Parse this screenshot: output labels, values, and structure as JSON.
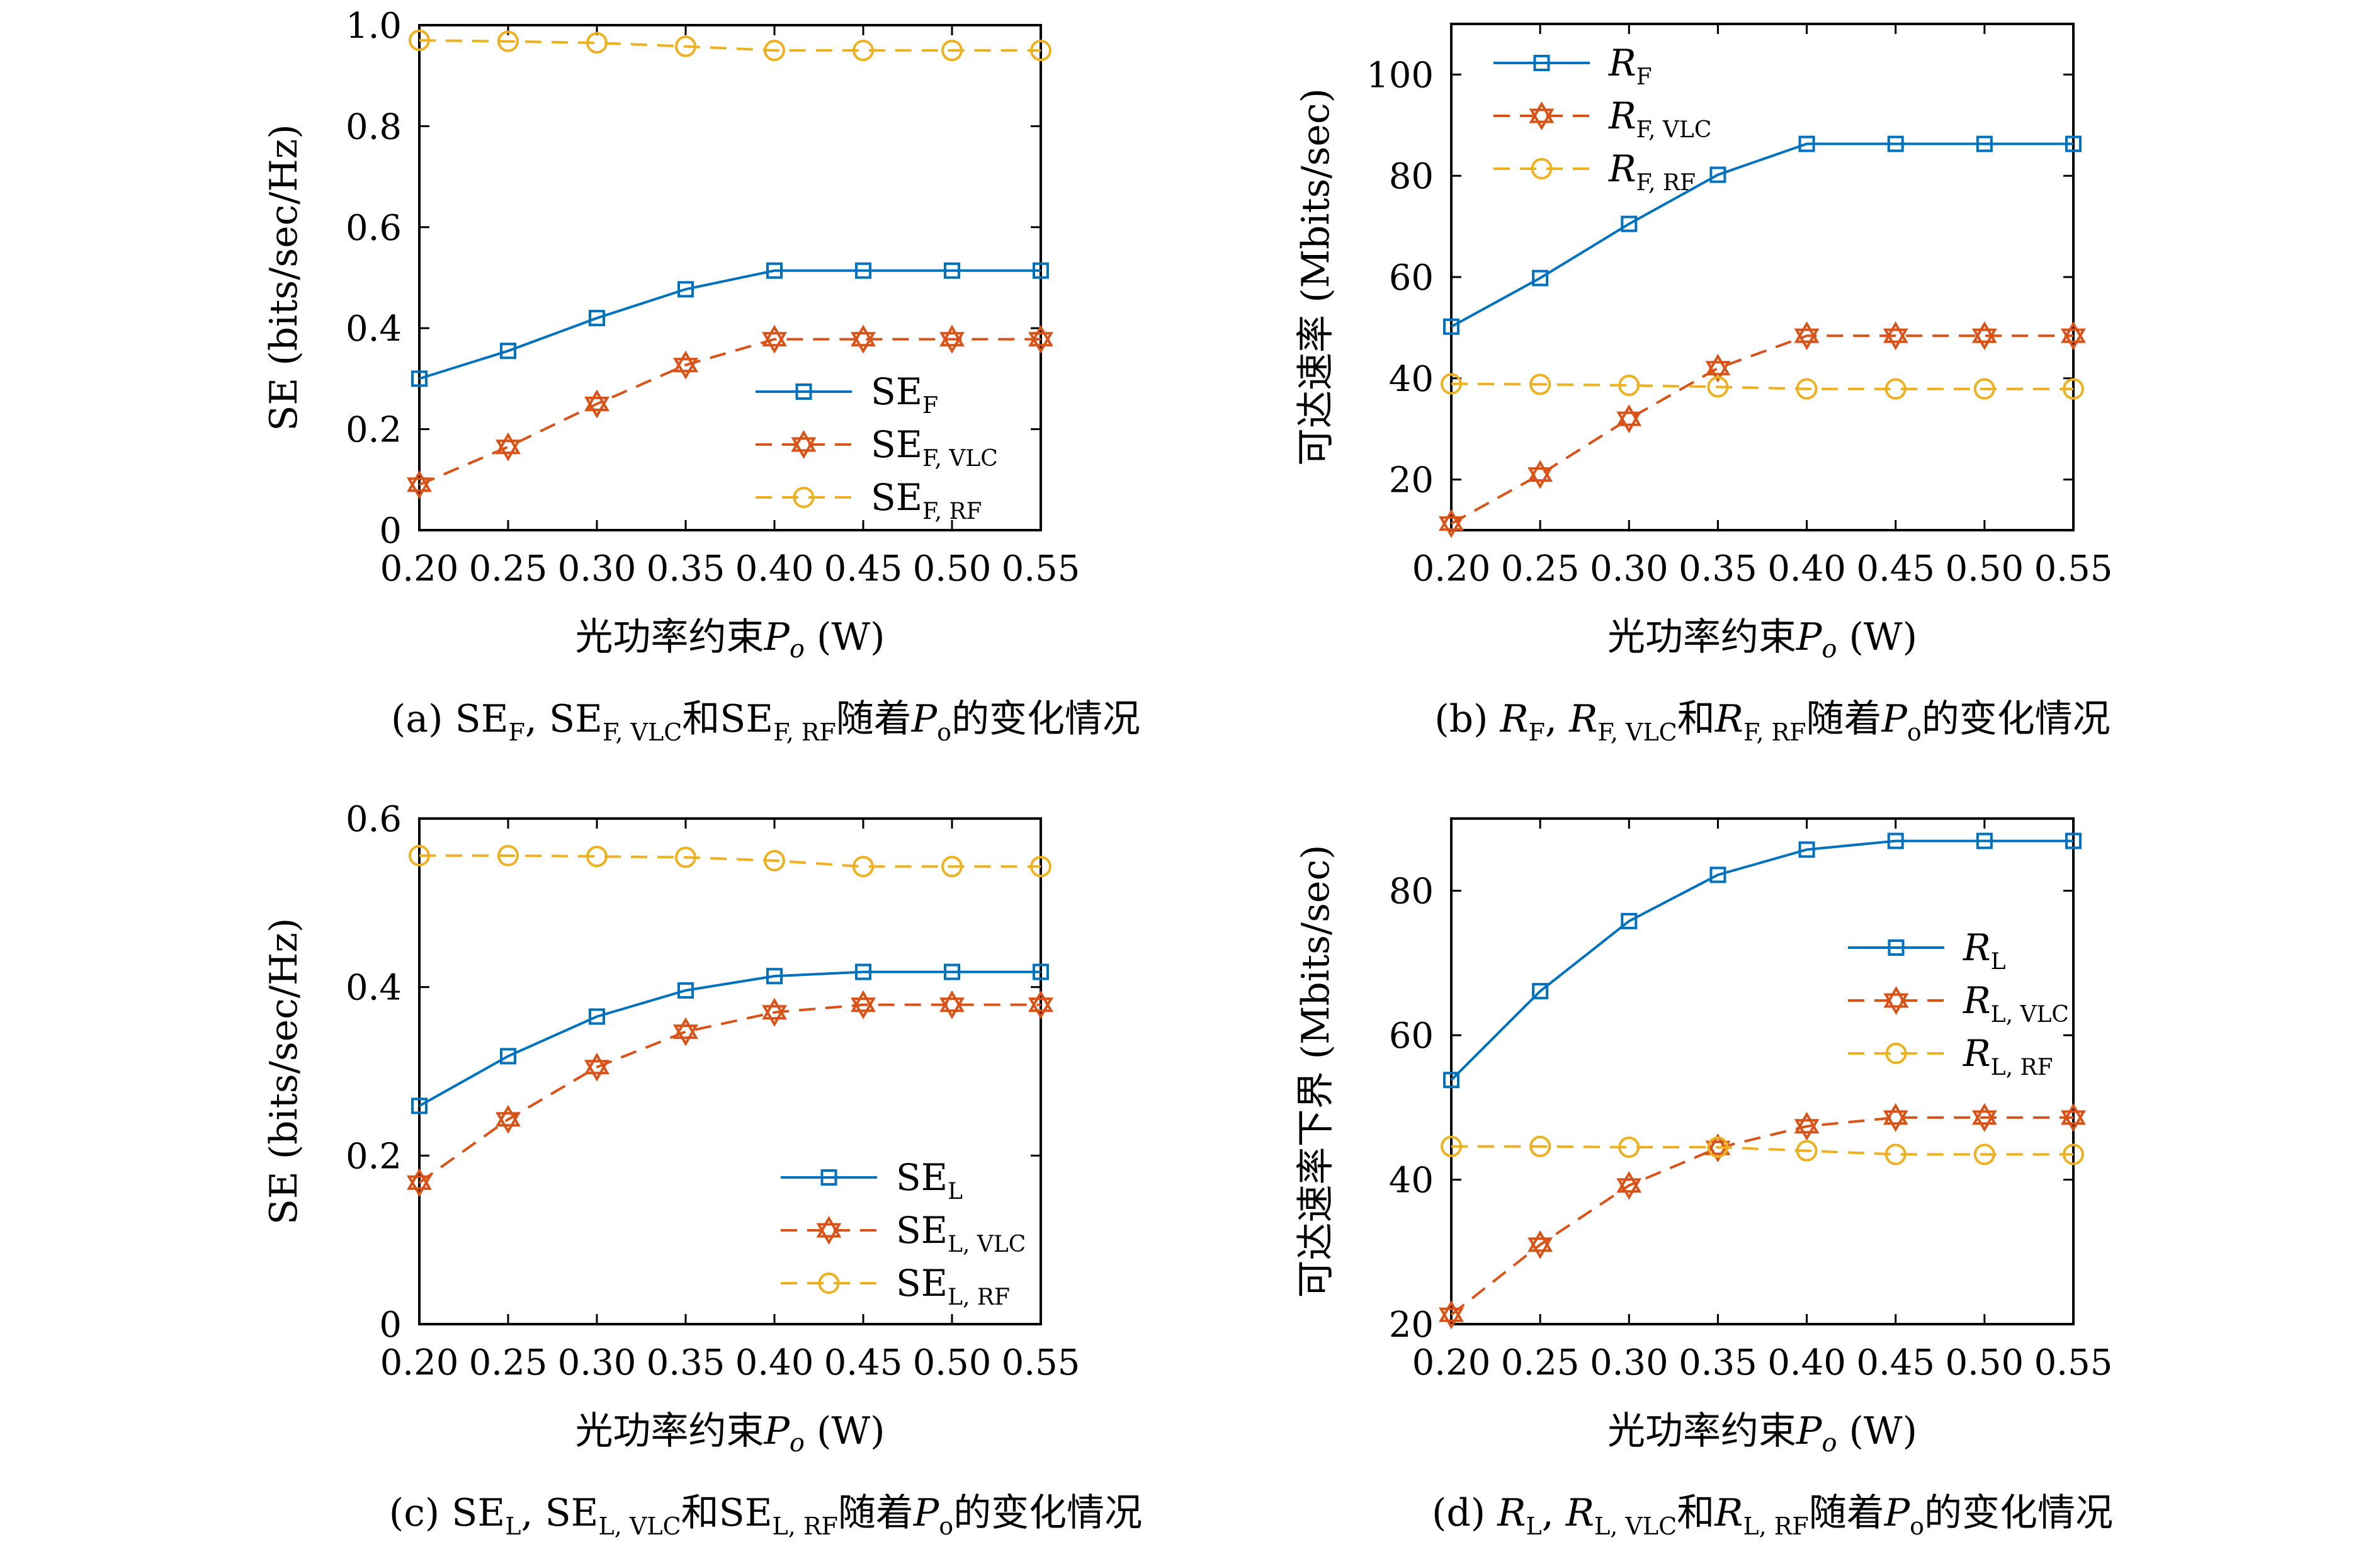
{
  "chart_data": [
    {
      "id": "a",
      "type": "line",
      "x": [
        0.2,
        0.25,
        0.3,
        0.35,
        0.4,
        0.45,
        0.5,
        0.55
      ],
      "xticks": [
        "0.20",
        "0.25",
        "0.30",
        "0.35",
        "0.40",
        "0.45",
        "0.50",
        "0.55"
      ],
      "xlabel_main": "光功率约束",
      "xlabel_var": "P",
      "xlabel_sub": "o",
      "xlabel_unit": " (W)",
      "ylabel": "SE (bits/sec/Hz)",
      "ylim": [
        0,
        1.0
      ],
      "yticks": [
        0,
        0.2,
        0.4,
        0.6,
        0.8,
        1.0
      ],
      "ytick_labels": [
        "0",
        "0.2",
        "0.4",
        "0.6",
        "0.8",
        "1.0"
      ],
      "legend_position": "lower-right",
      "series": [
        {
          "name": "SE",
          "name_sub": "F",
          "italic": false,
          "color": "#0072BD",
          "marker": "square",
          "dashed": false,
          "values": [
            0.3,
            0.355,
            0.42,
            0.477,
            0.514,
            0.514,
            0.514,
            0.514
          ]
        },
        {
          "name": "SE",
          "name_sub": "F, VLC",
          "italic": false,
          "color": "#D95319",
          "marker": "hexagram",
          "dashed": true,
          "values": [
            0.09,
            0.165,
            0.25,
            0.327,
            0.378,
            0.378,
            0.378,
            0.378
          ]
        },
        {
          "name": "SE",
          "name_sub": "F, RF",
          "italic": false,
          "color": "#EDB120",
          "marker": "circle",
          "dashed": true,
          "values": [
            0.97,
            0.968,
            0.965,
            0.958,
            0.95,
            0.95,
            0.95,
            0.95
          ]
        }
      ],
      "caption": {
        "prefix": "(a) ",
        "parts": [
          {
            "t": "SE"
          },
          {
            "sub": "F"
          },
          {
            "t": ", SE"
          },
          {
            "sub": "F, VLC"
          },
          {
            "t": "和SE"
          },
          {
            "sub": "F, RF"
          },
          {
            "t": "随着"
          },
          {
            "it": "P"
          },
          {
            "sub": "o"
          },
          {
            "t": "的变化情况"
          }
        ]
      }
    },
    {
      "id": "b",
      "type": "line",
      "x": [
        0.2,
        0.25,
        0.3,
        0.35,
        0.4,
        0.45,
        0.5,
        0.55
      ],
      "xticks": [
        "0.20",
        "0.25",
        "0.30",
        "0.35",
        "0.40",
        "0.45",
        "0.50",
        "0.55"
      ],
      "xlabel_main": "光功率约束",
      "xlabel_var": "P",
      "xlabel_sub": "o",
      "xlabel_unit": " (W)",
      "ylabel": "可达速率 (Mbits/sec)",
      "ylim": [
        10,
        110
      ],
      "yticks": [
        20,
        40,
        60,
        80,
        100
      ],
      "ytick_labels": [
        "20",
        "40",
        "60",
        "80",
        "100"
      ],
      "legend_position": "top-left",
      "series": [
        {
          "name": "R",
          "name_sub": "F",
          "italic": true,
          "color": "#0072BD",
          "marker": "square",
          "dashed": false,
          "values": [
            50.2,
            59.8,
            70.5,
            80.2,
            86.3,
            86.3,
            86.3,
            86.3
          ]
        },
        {
          "name": "R",
          "name_sub": "F, VLC",
          "italic": true,
          "color": "#D95319",
          "marker": "hexagram",
          "dashed": true,
          "values": [
            11.3,
            21.0,
            32.0,
            42.0,
            48.4,
            48.4,
            48.4,
            48.4
          ]
        },
        {
          "name": "R",
          "name_sub": "F, RF",
          "italic": true,
          "color": "#EDB120",
          "marker": "circle",
          "dashed": true,
          "values": [
            38.9,
            38.8,
            38.6,
            38.3,
            37.9,
            37.9,
            37.9,
            37.9
          ]
        }
      ],
      "caption": {
        "prefix": "(b) ",
        "parts": [
          {
            "it": "R"
          },
          {
            "sub": "F"
          },
          {
            "t": ", "
          },
          {
            "it": "R"
          },
          {
            "sub": "F, VLC"
          },
          {
            "t": "和"
          },
          {
            "it": "R"
          },
          {
            "sub": "F, RF"
          },
          {
            "t": "随着"
          },
          {
            "it": "P"
          },
          {
            "sub": "o"
          },
          {
            "t": "的变化情况"
          }
        ]
      }
    },
    {
      "id": "c",
      "type": "line",
      "x": [
        0.2,
        0.25,
        0.3,
        0.35,
        0.4,
        0.45,
        0.5,
        0.55
      ],
      "xticks": [
        "0.20",
        "0.25",
        "0.30",
        "0.35",
        "0.40",
        "0.45",
        "0.50",
        "0.55"
      ],
      "xlabel_main": "光功率约束",
      "xlabel_var": "P",
      "xlabel_sub": "o",
      "xlabel_unit": " (W)",
      "ylabel": "SE (bits/sec/Hz)",
      "ylim": [
        0,
        0.6
      ],
      "yticks": [
        0,
        0.2,
        0.4,
        0.6
      ],
      "ytick_labels": [
        "0",
        "0.2",
        "0.4",
        "0.6"
      ],
      "legend_position": "lower-right",
      "series": [
        {
          "name": "SE",
          "name_sub": "L",
          "italic": false,
          "color": "#0072BD",
          "marker": "square",
          "dashed": false,
          "values": [
            0.259,
            0.318,
            0.365,
            0.396,
            0.413,
            0.418,
            0.418,
            0.418
          ]
        },
        {
          "name": "SE",
          "name_sub": "L, VLC",
          "italic": false,
          "color": "#D95319",
          "marker": "hexagram",
          "dashed": true,
          "values": [
            0.168,
            0.243,
            0.305,
            0.347,
            0.37,
            0.379,
            0.379,
            0.379
          ]
        },
        {
          "name": "SE",
          "name_sub": "L, RF",
          "italic": false,
          "color": "#EDB120",
          "marker": "circle",
          "dashed": true,
          "values": [
            0.556,
            0.556,
            0.555,
            0.554,
            0.55,
            0.543,
            0.543,
            0.543
          ]
        }
      ],
      "caption": {
        "prefix": "(c) ",
        "parts": [
          {
            "t": "SE"
          },
          {
            "sub": "L"
          },
          {
            "t": ", SE"
          },
          {
            "sub": "L, VLC"
          },
          {
            "t": "和SE"
          },
          {
            "sub": "L, RF"
          },
          {
            "t": "随着"
          },
          {
            "it": "P"
          },
          {
            "sub": "o"
          },
          {
            "t": "的变化情况"
          }
        ]
      }
    },
    {
      "id": "d",
      "type": "line",
      "x": [
        0.2,
        0.25,
        0.3,
        0.35,
        0.4,
        0.45,
        0.5,
        0.55
      ],
      "xticks": [
        "0.20",
        "0.25",
        "0.30",
        "0.35",
        "0.40",
        "0.45",
        "0.50",
        "0.55"
      ],
      "xlabel_main": "光功率约束",
      "xlabel_var": "P",
      "xlabel_sub": "o",
      "xlabel_unit": " (W)",
      "ylabel": "可达速率下界 (Mbits/sec)",
      "ylim": [
        20,
        90
      ],
      "yticks": [
        20,
        40,
        60,
        80
      ],
      "ytick_labels": [
        "20",
        "40",
        "60",
        "80"
      ],
      "legend_position": "right",
      "series": [
        {
          "name": "R",
          "name_sub": "L",
          "italic": true,
          "color": "#0072BD",
          "marker": "square",
          "dashed": false,
          "values": [
            53.8,
            66.1,
            75.8,
            82.2,
            85.7,
            86.9,
            86.9,
            86.9
          ]
        },
        {
          "name": "R",
          "name_sub": "L, VLC",
          "italic": true,
          "color": "#D95319",
          "marker": "hexagram",
          "dashed": true,
          "values": [
            21.3,
            31.0,
            39.2,
            44.4,
            47.4,
            48.6,
            48.6,
            48.6
          ]
        },
        {
          "name": "R",
          "name_sub": "L, RF",
          "italic": true,
          "color": "#EDB120",
          "marker": "circle",
          "dashed": true,
          "values": [
            44.6,
            44.6,
            44.5,
            44.5,
            44.0,
            43.5,
            43.5,
            43.5
          ]
        }
      ],
      "caption": {
        "prefix": "(d) ",
        "parts": [
          {
            "it": "R"
          },
          {
            "sub": "L"
          },
          {
            "t": ", "
          },
          {
            "it": "R"
          },
          {
            "sub": "L, VLC"
          },
          {
            "t": "和"
          },
          {
            "it": "R"
          },
          {
            "sub": "L, RF"
          },
          {
            "t": "随着"
          },
          {
            "it": "P"
          },
          {
            "sub": "o"
          },
          {
            "t": "的变化情况"
          }
        ]
      }
    }
  ]
}
